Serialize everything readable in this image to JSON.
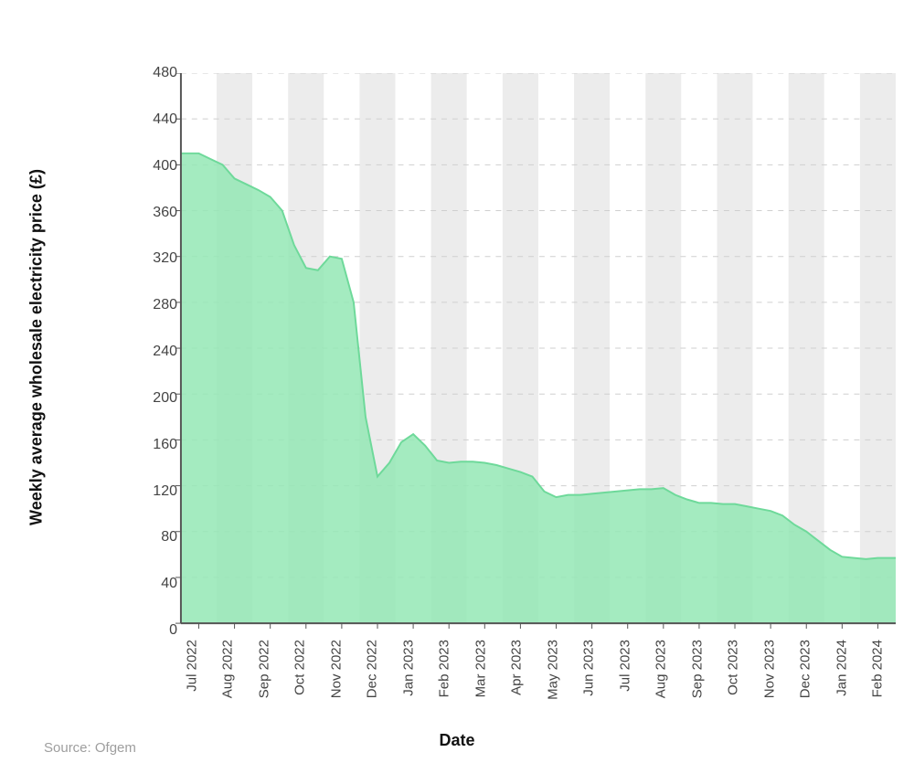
{
  "chart": {
    "type": "area",
    "y_axis_title": "Weekly average wholesale electricity price (£)",
    "x_axis_title": "Date",
    "source_text": "Source: Ofgem",
    "background_color": "#ffffff",
    "plot_background_stripe_light": "#ffffff",
    "plot_background_stripe_dark": "#ececec",
    "grid_color": "#cfcfcf",
    "axis_line_color": "#555555",
    "area_fill_color": "#94e8b5",
    "area_line_color": "#6ed99a",
    "area_fill_opacity": 0.85,
    "line_width": 2,
    "title_fontsize": 18,
    "tick_fontsize": 16,
    "x_tick_fontsize": 15,
    "source_color": "#9e9e9e",
    "label_color": "#444444",
    "ylim": [
      0,
      480
    ],
    "y_tick_step": 40,
    "y_ticks": [
      0,
      40,
      80,
      120,
      160,
      200,
      240,
      280,
      320,
      360,
      400,
      440,
      480
    ],
    "x_categories": [
      "Jul 2022",
      "Aug 2022",
      "Sep 2022",
      "Oct 2022",
      "Nov 2022",
      "Dec 2022",
      "Jan 2023",
      "Feb 2023",
      "Mar 2023",
      "Apr 2023",
      "May 2023",
      "Jun 2023",
      "Jul 2023",
      "Aug 2023",
      "Sep 2023",
      "Oct 2023",
      "Nov 2023",
      "Dec 2023",
      "Jan 2024",
      "Feb 2024"
    ],
    "values": [
      410,
      388,
      372,
      310,
      318,
      128,
      165,
      140,
      140,
      132,
      110,
      113,
      116,
      118,
      105,
      104,
      98,
      80,
      58,
      57
    ],
    "extra_points_per_segment": {
      "0": [
        405,
        400
      ],
      "1": [
        383,
        378
      ],
      "2": [
        360,
        330
      ],
      "3": [
        308,
        320
      ],
      "4": [
        280,
        180
      ],
      "5": [
        140,
        158
      ],
      "6": [
        155,
        142
      ],
      "7": [
        141,
        141
      ],
      "8": [
        138,
        135
      ],
      "9": [
        128,
        115
      ],
      "10": [
        112,
        112
      ],
      "11": [
        114,
        115
      ],
      "12": [
        117,
        117
      ],
      "13": [
        112,
        108
      ],
      "14": [
        105,
        104
      ],
      "15": [
        102,
        100
      ],
      "16": [
        94,
        86
      ],
      "17": [
        72,
        64
      ],
      "18": [
        57,
        56
      ]
    }
  }
}
